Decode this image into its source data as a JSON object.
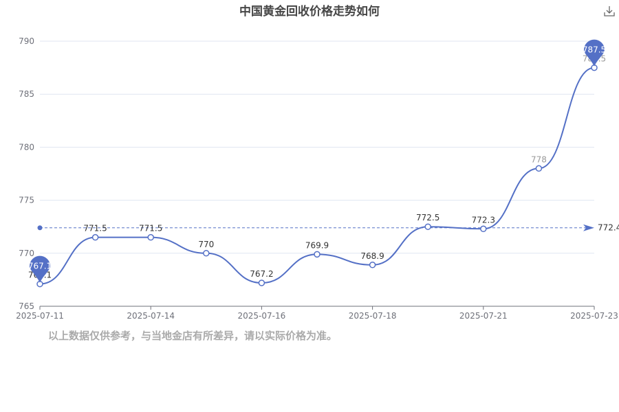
{
  "title": "中国黄金回收价格走势如何",
  "footnote": "以上数据仅供参考，与当地金店有所差异，请以实际价格为准。",
  "icons": {
    "download": "download-icon"
  },
  "colors": {
    "line": "#5470c6",
    "grid": "#e0e6f1",
    "axis": "#6e7079",
    "label": "#333333"
  },
  "chart_data": {
    "type": "line",
    "smooth": true,
    "ylim": [
      765,
      790
    ],
    "yticks": [
      765,
      770,
      775,
      780,
      785,
      790
    ],
    "x_tick_labels": [
      "2025-07-11",
      "2025-07-14",
      "2025-07-16",
      "2025-07-18",
      "2025-07-21",
      "2025-07-23"
    ],
    "values": [
      767.1,
      771.5,
      771.5,
      770,
      767.2,
      769.9,
      768.9,
      772.5,
      772.3,
      778,
      787.5
    ],
    "value_labels": [
      "767.1",
      "771.5",
      "771.5",
      "770",
      "767.2",
      "769.9",
      "768.9",
      "772.5",
      "772.3",
      "778",
      "787.5"
    ],
    "min_marker": {
      "value": 767.1,
      "label": "767.1"
    },
    "max_marker": {
      "value": 787.5,
      "label": "787.5"
    },
    "average_line": {
      "value": 772.4,
      "label": "772.4"
    },
    "grid": true,
    "legend": "none"
  }
}
